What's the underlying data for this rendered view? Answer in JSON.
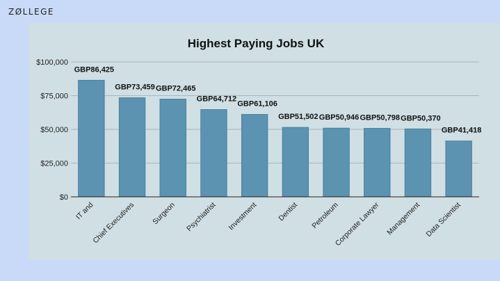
{
  "brand": {
    "logo_text": "ZØLLEGE"
  },
  "chart_data": {
    "type": "bar",
    "title": "Highest Paying Jobs UK",
    "xlabel": "",
    "ylabel": "",
    "ylim": [
      0,
      100000
    ],
    "yticks": [
      0,
      25000,
      50000,
      75000,
      100000
    ],
    "ytick_labels": [
      "$0",
      "$25,000",
      "$50,000",
      "$75,000",
      "$100,000"
    ],
    "categories": [
      "IT and",
      "Chief Executives",
      "Surgeon",
      "Psychiatrist",
      "Investment",
      "Dentist",
      "Petroleum",
      "Corporate Lawyer",
      "Management",
      "Data Scientist"
    ],
    "values": [
      86425,
      73459,
      72465,
      64712,
      61106,
      51502,
      50946,
      50798,
      50370,
      41418
    ],
    "data_labels": [
      "GBP86,425",
      "GBP73,459",
      "GBP72,465",
      "GBP64,712",
      "GBP61,106",
      "GBP51,502",
      "GBP50,946",
      "GBP50,798",
      "GBP50,370",
      "GBP41,418"
    ],
    "grid": true,
    "colors": {
      "bar": "#5b93b0",
      "bar_edge": "#44799a",
      "grid": "#9aa9ae",
      "axis": "#222222"
    }
  }
}
